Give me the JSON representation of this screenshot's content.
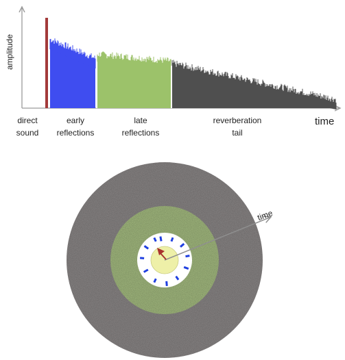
{
  "top_diagram": {
    "y_axis_label": "amplitude",
    "x_axis_label": "time",
    "segments": [
      {
        "id": "direct",
        "line1": "direct",
        "line2": "sound",
        "color": "#a33a3a"
      },
      {
        "id": "early",
        "line1": "early",
        "line2": "reflections",
        "color": "#3f4df0"
      },
      {
        "id": "late",
        "line1": "late",
        "line2": "reflections",
        "color": "#9cc26a"
      },
      {
        "id": "tail",
        "line1": "reverberation",
        "line2": "tail",
        "color": "#4f4f4f"
      }
    ]
  },
  "bottom_diagram": {
    "arrow_label": "time",
    "colors": {
      "outer_ring": "#8f8b8b",
      "middle_ring": "#a9c184",
      "inner_disc": "#ffffff",
      "core": "#eef0a8",
      "dashes": "#1f3fe0",
      "source_arrow": "#a8322e",
      "time_arrow": "#8f8f8f"
    }
  }
}
